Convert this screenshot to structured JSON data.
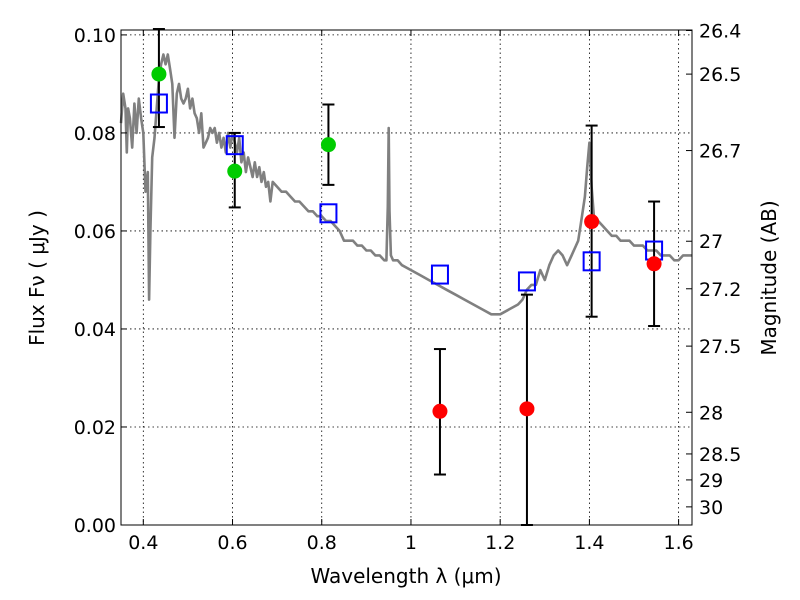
{
  "chart_data": {
    "type": "scatter",
    "xlabel": "Wavelength  λ (μm)",
    "ylabel": "Flux  Fν  ( μJy )",
    "ylabel_right": "Magnitude (AB)",
    "xlim": [
      0.35,
      1.63
    ],
    "ylim": [
      0.0,
      0.101
    ],
    "x_ticks": [
      0.4,
      0.6,
      0.8,
      1.0,
      1.2,
      1.4,
      1.6
    ],
    "x_tick_labels": [
      "0.4",
      "0.6",
      "0.8",
      "1",
      "1.2",
      "1.4",
      "1.6"
    ],
    "y_ticks": [
      0.0,
      0.02,
      0.04,
      0.06,
      0.08,
      0.1
    ],
    "y_tick_labels": [
      "0.00",
      "0.02",
      "0.04",
      "0.06",
      "0.08",
      "0.10"
    ],
    "right_ticks": [
      {
        "label": "26.4",
        "flux": 0.1009
      },
      {
        "label": "26.5",
        "flux": 0.092
      },
      {
        "label": "26.7",
        "flux": 0.0764
      },
      {
        "label": "27",
        "flux": 0.0579
      },
      {
        "label": "27.2",
        "flux": 0.0482
      },
      {
        "label": "27.5",
        "flux": 0.0365
      },
      {
        "label": "28",
        "flux": 0.023
      },
      {
        "label": "28.5",
        "flux": 0.0145
      },
      {
        "label": "29",
        "flux": 0.0092
      },
      {
        "label": "30",
        "flux": 0.0037
      }
    ],
    "grid": true,
    "model_spectrum": {
      "color": "#808080",
      "x": [
        0.35,
        0.355,
        0.36,
        0.363,
        0.366,
        0.37,
        0.375,
        0.38,
        0.385,
        0.39,
        0.395,
        0.4,
        0.405,
        0.41,
        0.413,
        0.416,
        0.42,
        0.425,
        0.43,
        0.435,
        0.44,
        0.445,
        0.45,
        0.455,
        0.46,
        0.465,
        0.47,
        0.475,
        0.48,
        0.485,
        0.49,
        0.495,
        0.5,
        0.505,
        0.51,
        0.515,
        0.52,
        0.525,
        0.53,
        0.535,
        0.54,
        0.545,
        0.55,
        0.555,
        0.56,
        0.565,
        0.57,
        0.575,
        0.58,
        0.585,
        0.59,
        0.595,
        0.6,
        0.605,
        0.61,
        0.615,
        0.62,
        0.625,
        0.63,
        0.635,
        0.64,
        0.645,
        0.65,
        0.655,
        0.66,
        0.665,
        0.67,
        0.675,
        0.68,
        0.685,
        0.69,
        0.7,
        0.71,
        0.72,
        0.73,
        0.74,
        0.75,
        0.76,
        0.77,
        0.78,
        0.79,
        0.8,
        0.81,
        0.82,
        0.83,
        0.84,
        0.85,
        0.86,
        0.87,
        0.88,
        0.89,
        0.9,
        0.91,
        0.92,
        0.93,
        0.94,
        0.945,
        0.948,
        0.95,
        0.952,
        0.955,
        0.96,
        0.97,
        0.98,
        1.0,
        1.02,
        1.04,
        1.06,
        1.08,
        1.1,
        1.12,
        1.14,
        1.16,
        1.18,
        1.2,
        1.22,
        1.24,
        1.25,
        1.26,
        1.27,
        1.28,
        1.29,
        1.3,
        1.31,
        1.32,
        1.33,
        1.34,
        1.35,
        1.36,
        1.37,
        1.375,
        1.38,
        1.385,
        1.39,
        1.395,
        1.4,
        1.405,
        1.41,
        1.42,
        1.43,
        1.44,
        1.45,
        1.46,
        1.47,
        1.48,
        1.49,
        1.5,
        1.51,
        1.52,
        1.53,
        1.54,
        1.55,
        1.56,
        1.57,
        1.58,
        1.59,
        1.6,
        1.61,
        1.62,
        1.63
      ],
      "y": [
        0.082,
        0.088,
        0.085,
        0.076,
        0.085,
        0.083,
        0.077,
        0.086,
        0.08,
        0.087,
        0.083,
        0.08,
        0.068,
        0.072,
        0.046,
        0.06,
        0.075,
        0.079,
        0.085,
        0.091,
        0.094,
        0.096,
        0.094,
        0.096,
        0.093,
        0.09,
        0.079,
        0.088,
        0.09,
        0.087,
        0.086,
        0.087,
        0.089,
        0.085,
        0.087,
        0.084,
        0.083,
        0.08,
        0.084,
        0.077,
        0.078,
        0.079,
        0.081,
        0.08,
        0.081,
        0.078,
        0.08,
        0.077,
        0.079,
        0.076,
        0.08,
        0.077,
        0.08,
        0.078,
        0.076,
        0.079,
        0.074,
        0.076,
        0.072,
        0.075,
        0.073,
        0.071,
        0.074,
        0.071,
        0.073,
        0.07,
        0.072,
        0.069,
        0.07,
        0.066,
        0.07,
        0.069,
        0.068,
        0.068,
        0.067,
        0.066,
        0.066,
        0.065,
        0.064,
        0.064,
        0.063,
        0.063,
        0.062,
        0.062,
        0.061,
        0.06,
        0.058,
        0.058,
        0.058,
        0.057,
        0.057,
        0.056,
        0.056,
        0.055,
        0.055,
        0.054,
        0.054,
        0.065,
        0.081,
        0.064,
        0.055,
        0.054,
        0.054,
        0.053,
        0.052,
        0.051,
        0.05,
        0.049,
        0.048,
        0.047,
        0.046,
        0.045,
        0.044,
        0.043,
        0.043,
        0.044,
        0.045,
        0.046,
        0.048,
        0.049,
        0.049,
        0.052,
        0.05,
        0.053,
        0.055,
        0.056,
        0.055,
        0.053,
        0.055,
        0.057,
        0.058,
        0.061,
        0.064,
        0.067,
        0.073,
        0.078,
        0.069,
        0.063,
        0.062,
        0.061,
        0.06,
        0.059,
        0.059,
        0.058,
        0.058,
        0.058,
        0.057,
        0.057,
        0.057,
        0.056,
        0.056,
        0.056,
        0.055,
        0.055,
        0.055,
        0.054,
        0.054,
        0.055,
        0.055,
        0.055
      ]
    },
    "model_bands": {
      "color": "#0000ff",
      "x": [
        0.435,
        0.605,
        0.815,
        1.065,
        1.26,
        1.405,
        1.545
      ],
      "y": [
        0.086,
        0.0775,
        0.0636,
        0.0511,
        0.0497,
        0.0538,
        0.056
      ]
    },
    "observed_points": [
      {
        "x": 0.435,
        "y": 0.092,
        "err_low": 0.0108,
        "err_high": 0.0092,
        "color": "#00cc00"
      },
      {
        "x": 0.605,
        "y": 0.0722,
        "err_low": 0.0074,
        "err_high": 0.0078,
        "color": "#00cc00"
      },
      {
        "x": 0.815,
        "y": 0.0776,
        "err_low": 0.0082,
        "err_high": 0.0082,
        "color": "#00cc00"
      },
      {
        "x": 1.065,
        "y": 0.0232,
        "err_low": 0.0129,
        "err_high": 0.0127,
        "color": "#ff0000"
      },
      {
        "x": 1.26,
        "y": 0.0237,
        "err_low": 0.0237,
        "err_high": 0.0233,
        "color": "#ff0000"
      },
      {
        "x": 1.405,
        "y": 0.0619,
        "err_low": 0.0194,
        "err_high": 0.0196,
        "color": "#ff0000"
      },
      {
        "x": 1.545,
        "y": 0.0533,
        "err_low": 0.0127,
        "err_high": 0.0127,
        "color": "#ff0000"
      }
    ]
  }
}
